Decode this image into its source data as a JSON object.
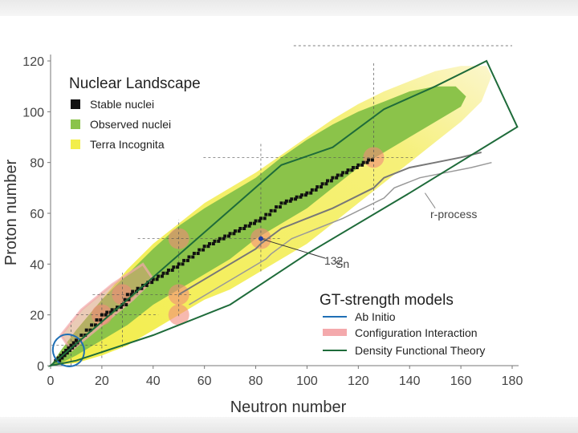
{
  "chart_data": {
    "type": "scatter",
    "title": "Nuclear Landscape",
    "xlabel": "Neutron number",
    "ylabel": "Proton number",
    "xlim": [
      0,
      180
    ],
    "ylim": [
      0,
      120
    ],
    "xticks": [
      0,
      20,
      40,
      60,
      80,
      100,
      120,
      140,
      160,
      180
    ],
    "yticks": [
      0,
      20,
      40,
      60,
      80,
      100,
      120
    ],
    "legend_nuclei": [
      {
        "label": "Stable nuclei",
        "color": "#111111"
      },
      {
        "label": "Observed nuclei",
        "color": "#8bc34a"
      },
      {
        "label": "Terra Incognita",
        "color": "#f2ee4a"
      }
    ],
    "legend_models_title": "GT-strength models",
    "legend_models": [
      {
        "label": "Ab Initio",
        "color": "#1f6fb5"
      },
      {
        "label": "Configuration Interaction",
        "color": "#f4a9ac"
      },
      {
        "label": "Density Functional Theory",
        "color": "#1e6b3a"
      }
    ],
    "annotations": {
      "rprocess": "r-process",
      "sn_mass": "132",
      "sn_symbol": "Sn"
    },
    "magic_numbers": [
      8,
      20,
      28,
      50,
      82,
      126
    ],
    "stable_valley": [
      [
        2,
        2
      ],
      [
        4,
        4
      ],
      [
        6,
        6
      ],
      [
        8,
        8
      ],
      [
        10,
        10
      ],
      [
        14,
        14
      ],
      [
        20,
        20
      ],
      [
        28,
        24
      ],
      [
        30,
        28
      ],
      [
        40,
        34
      ],
      [
        50,
        40
      ],
      [
        60,
        47
      ],
      [
        70,
        52
      ],
      [
        82,
        58
      ],
      [
        90,
        64
      ],
      [
        100,
        68
      ],
      [
        110,
        74
      ],
      [
        118,
        78
      ],
      [
        126,
        82
      ]
    ],
    "observed_boundary": [
      [
        0,
        0
      ],
      [
        4,
        6
      ],
      [
        10,
        14
      ],
      [
        20,
        26
      ],
      [
        30,
        36
      ],
      [
        40,
        46
      ],
      [
        50,
        55
      ],
      [
        60,
        62
      ],
      [
        70,
        68
      ],
      [
        80,
        74
      ],
      [
        90,
        82
      ],
      [
        100,
        89
      ],
      [
        110,
        95
      ],
      [
        120,
        100
      ],
      [
        130,
        104
      ],
      [
        140,
        108
      ],
      [
        150,
        110
      ],
      [
        158,
        110
      ],
      [
        162,
        106
      ],
      [
        160,
        102
      ],
      [
        150,
        96
      ],
      [
        140,
        90
      ],
      [
        130,
        84
      ],
      [
        120,
        78
      ],
      [
        110,
        70
      ],
      [
        100,
        62
      ],
      [
        90,
        56
      ],
      [
        80,
        50
      ],
      [
        70,
        42
      ],
      [
        60,
        36
      ],
      [
        50,
        30
      ],
      [
        40,
        24
      ],
      [
        30,
        16
      ],
      [
        20,
        10
      ],
      [
        10,
        4
      ],
      [
        2,
        0
      ]
    ],
    "terra_incognita_boundary": [
      [
        0,
        0
      ],
      [
        10,
        14
      ],
      [
        20,
        26
      ],
      [
        30,
        38
      ],
      [
        40,
        48
      ],
      [
        50,
        56
      ],
      [
        60,
        64
      ],
      [
        70,
        70
      ],
      [
        80,
        76
      ],
      [
        90,
        83
      ],
      [
        100,
        90
      ],
      [
        110,
        97
      ],
      [
        120,
        103
      ],
      [
        130,
        108
      ],
      [
        140,
        112
      ],
      [
        150,
        116
      ],
      [
        160,
        118
      ],
      [
        170,
        118
      ],
      [
        172,
        114
      ],
      [
        168,
        104
      ],
      [
        160,
        96
      ],
      [
        150,
        88
      ],
      [
        140,
        80
      ],
      [
        130,
        72
      ],
      [
        120,
        64
      ],
      [
        110,
        56
      ],
      [
        100,
        48
      ],
      [
        90,
        42
      ],
      [
        80,
        36
      ],
      [
        70,
        30
      ],
      [
        60,
        26
      ],
      [
        50,
        20
      ],
      [
        40,
        14
      ],
      [
        30,
        8
      ],
      [
        20,
        4
      ],
      [
        10,
        1
      ]
    ],
    "rprocess_path": [
      [
        50,
        28
      ],
      [
        60,
        34
      ],
      [
        70,
        40
      ],
      [
        80,
        46
      ],
      [
        82,
        48
      ],
      [
        90,
        54
      ],
      [
        100,
        58
      ],
      [
        110,
        62
      ],
      [
        126,
        70
      ],
      [
        130,
        74
      ],
      [
        140,
        78
      ],
      [
        150,
        80
      ],
      [
        160,
        82
      ],
      [
        168,
        84
      ]
    ],
    "dft_region_boundary": [
      [
        0,
        0
      ],
      [
        30,
        26
      ],
      [
        90,
        79
      ],
      [
        110,
        86
      ],
      [
        130,
        101
      ],
      [
        150,
        110
      ],
      [
        170,
        120
      ],
      [
        182,
        94
      ],
      [
        140,
        68
      ],
      [
        100,
        44
      ],
      [
        70,
        24
      ],
      [
        40,
        12
      ],
      [
        10,
        2
      ],
      [
        0,
        0
      ]
    ],
    "ab_initio_ellipse": {
      "cx": 7,
      "cy": 6,
      "rx": 6,
      "ry": 4,
      "angle_deg": -35
    },
    "ci_region": [
      [
        8,
        6
      ],
      [
        20,
        16
      ],
      [
        32,
        26
      ],
      [
        40,
        34
      ],
      [
        36,
        40
      ],
      [
        24,
        32
      ],
      [
        12,
        22
      ],
      [
        4,
        12
      ]
    ],
    "hotspots": [
      [
        20,
        20
      ],
      [
        50,
        50
      ],
      [
        82,
        50
      ],
      [
        126,
        82
      ],
      [
        50,
        28
      ],
      [
        50,
        20
      ],
      [
        28,
        28
      ]
    ],
    "sn132_point": [
      82,
      50
    ]
  }
}
